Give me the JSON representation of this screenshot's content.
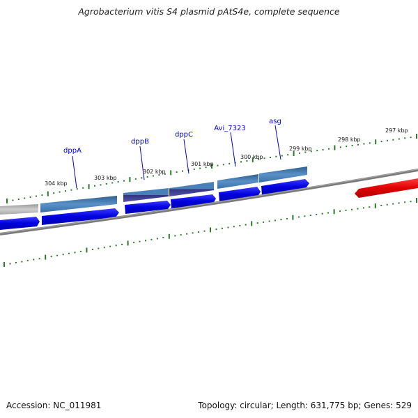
{
  "title": "Agrobacterium vitis S4 plasmid pAtS4e, complete sequence",
  "footer": {
    "accession": "Accession: NC_011981",
    "summary": "Topology: circular; Length: 631,775 bp; Genes: 529"
  },
  "ticks": {
    "labels": [
      "304 kbp",
      "303 kbp",
      "302 kbp",
      "301 kbp",
      "300 kbp",
      "299 kbp",
      "298 kbp",
      "297 kbp"
    ]
  },
  "genes": [
    {
      "name": "dppA"
    },
    {
      "name": "dppB"
    },
    {
      "name": "dppC"
    },
    {
      "name": "Avi_7323"
    },
    {
      "name": "asg"
    }
  ],
  "colors": {
    "forward_cds": "#0000e0",
    "reverse_cds": "#e00000",
    "feature_blue": "#4a80b8",
    "feature_purple": "#3a3a90",
    "feature_grey": "#b8b8b8",
    "backbone": "#7a7a7a",
    "tick": "#2a7a2a",
    "gene_label": "#0000cc"
  }
}
